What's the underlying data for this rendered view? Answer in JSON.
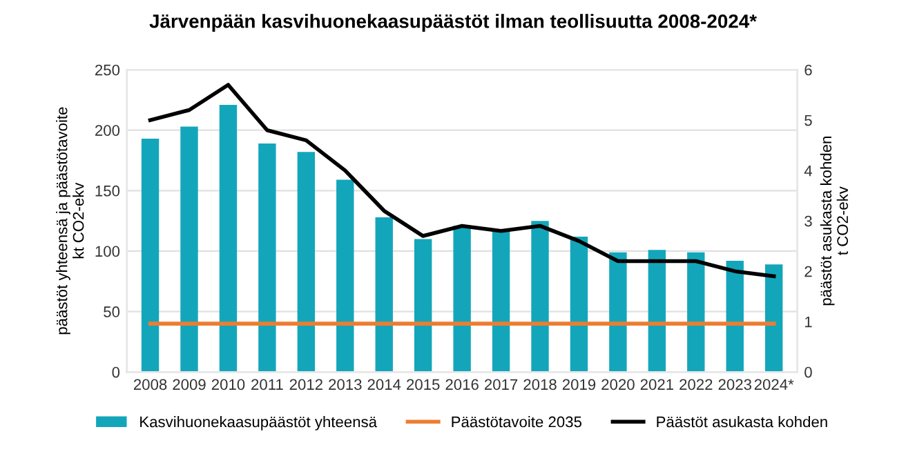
{
  "chart_data": {
    "type": "bar",
    "title": "Järvenpään kasvihuonekaasupäästöt ilman teollisuutta 2008-2024*",
    "ylabel": "päästöt yhteensä ja päästötavoite\nkt CO2-ekv",
    "y2label": "päästöt asukasta kohden\nt CO2-ekv",
    "categories": [
      "2008",
      "2009",
      "2010",
      "2011",
      "2012",
      "2013",
      "2014",
      "2015",
      "2016",
      "2017",
      "2018",
      "2019",
      "2020",
      "2021",
      "2022",
      "2023",
      "2024*"
    ],
    "series": [
      {
        "name": "Kasvihuonekaasupäästöt yhteensä",
        "color": "#13a6bb",
        "values": [
          193,
          203,
          221,
          189,
          182,
          159,
          128,
          110,
          121,
          117,
          125,
          112,
          99,
          101,
          99,
          92,
          89
        ]
      },
      {
        "name": "Päästötavoite 2035",
        "type": "line",
        "color": "#ed7d31",
        "values": [
          40,
          40,
          40,
          40,
          40,
          40,
          40,
          40,
          40,
          40,
          40,
          40,
          40,
          40,
          40,
          40,
          40
        ]
      },
      {
        "name": "Päästöt asukasta kohden",
        "type": "line",
        "axis": "y2",
        "color": "#000000",
        "values": [
          5.0,
          5.2,
          5.7,
          4.8,
          4.6,
          4.0,
          3.2,
          2.7,
          2.9,
          2.8,
          2.9,
          2.6,
          2.2,
          2.2,
          2.2,
          2.0,
          1.9
        ]
      }
    ],
    "ylim": [
      0,
      250
    ],
    "yticks": [
      0,
      50,
      100,
      150,
      200,
      250
    ],
    "y2lim": [
      0,
      6
    ],
    "y2ticks": [
      0,
      1,
      2,
      3,
      4,
      5,
      6
    ],
    "grid": "y",
    "legend": "bottom"
  }
}
